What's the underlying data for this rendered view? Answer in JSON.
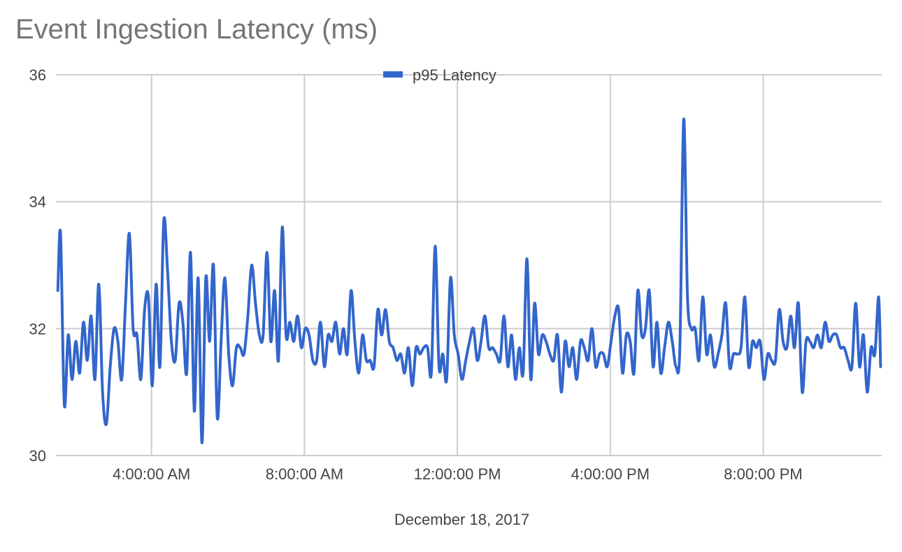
{
  "chart_data": {
    "type": "line",
    "title": "Event Ingestion Latency (ms)",
    "xlabel": "December 18, 2017",
    "ylabel": "",
    "ylim": [
      30,
      36
    ],
    "y_ticks": [
      30,
      32,
      34,
      36
    ],
    "x_range_hours": [
      1.5,
      23.1
    ],
    "x_ticks": [
      {
        "hour": 4,
        "label": "4:00:00 AM"
      },
      {
        "hour": 8,
        "label": "8:00:00 AM"
      },
      {
        "hour": 12,
        "label": "12:00:00 PM"
      },
      {
        "hour": 16,
        "label": "4:00:00 PM"
      },
      {
        "hour": 20,
        "label": "8:00:00 PM"
      }
    ],
    "grid": true,
    "legend_position": "top-center",
    "series": [
      {
        "name": "p95 Latency",
        "color": "#3366cc",
        "x_hours": [
          1.55,
          1.62,
          1.72,
          1.82,
          1.92,
          2.02,
          2.12,
          2.22,
          2.32,
          2.42,
          2.52,
          2.62,
          2.72,
          2.82,
          2.92,
          3.02,
          3.12,
          3.22,
          3.32,
          3.42,
          3.52,
          3.62,
          3.72,
          3.82,
          3.92,
          4.02,
          4.12,
          4.22,
          4.32,
          4.42,
          4.52,
          4.62,
          4.72,
          4.82,
          4.92,
          5.02,
          5.12,
          5.22,
          5.32,
          5.42,
          5.52,
          5.62,
          5.72,
          5.82,
          5.92,
          6.02,
          6.12,
          6.22,
          6.32,
          6.42,
          6.52,
          6.62,
          6.72,
          6.82,
          6.92,
          7.02,
          7.12,
          7.22,
          7.32,
          7.42,
          7.52,
          7.62,
          7.72,
          7.82,
          7.92,
          8.02,
          8.12,
          8.22,
          8.32,
          8.42,
          8.52,
          8.62,
          8.72,
          8.82,
          8.92,
          9.02,
          9.12,
          9.22,
          9.32,
          9.42,
          9.52,
          9.62,
          9.72,
          9.82,
          9.92,
          10.02,
          10.12,
          10.22,
          10.32,
          10.42,
          10.52,
          10.62,
          10.72,
          10.82,
          10.92,
          11.02,
          11.12,
          11.22,
          11.32,
          11.42,
          11.52,
          11.62,
          11.72,
          11.82,
          11.92,
          12.02,
          12.12,
          12.22,
          12.32,
          12.42,
          12.52,
          12.62,
          12.72,
          12.82,
          12.92,
          13.02,
          13.12,
          13.22,
          13.32,
          13.42,
          13.52,
          13.62,
          13.72,
          13.82,
          13.92,
          14.02,
          14.12,
          14.22,
          14.32,
          14.42,
          14.52,
          14.62,
          14.72,
          14.82,
          14.92,
          15.02,
          15.12,
          15.22,
          15.32,
          15.42,
          15.52,
          15.62,
          15.72,
          15.82,
          15.92,
          16.02,
          16.12,
          16.22,
          16.32,
          16.42,
          16.52,
          16.62,
          16.72,
          16.82,
          16.92,
          17.02,
          17.12,
          17.22,
          17.32,
          17.42,
          17.52,
          17.62,
          17.72,
          17.82,
          17.92,
          18.02,
          18.12,
          18.22,
          18.32,
          18.42,
          18.52,
          18.62,
          18.72,
          18.82,
          18.92,
          19.02,
          19.12,
          19.22,
          19.32,
          19.42,
          19.52,
          19.62,
          19.72,
          19.82,
          19.92,
          20.02,
          20.12,
          20.22,
          20.32,
          20.42,
          20.52,
          20.62,
          20.72,
          20.82,
          20.92,
          21.02,
          21.12,
          21.22,
          21.32,
          21.42,
          21.52,
          21.62,
          21.72,
          21.82,
          21.92,
          22.02,
          22.12,
          22.22,
          22.32,
          22.42,
          22.52,
          22.62,
          22.72,
          22.82,
          22.92,
          23.02,
          23.07
        ],
        "values": [
          32.6,
          33.5,
          30.8,
          31.9,
          31.2,
          31.8,
          31.3,
          32.1,
          31.5,
          32.2,
          31.2,
          32.7,
          31.0,
          30.5,
          31.4,
          32.0,
          31.8,
          31.2,
          32.4,
          33.5,
          32.0,
          31.9,
          31.2,
          32.3,
          32.5,
          31.1,
          32.7,
          31.4,
          33.7,
          32.9,
          31.8,
          31.5,
          32.4,
          32.1,
          31.3,
          33.2,
          30.7,
          32.8,
          30.2,
          32.8,
          31.8,
          33.0,
          30.6,
          31.8,
          32.8,
          31.6,
          31.1,
          31.7,
          31.7,
          31.6,
          32.2,
          33.0,
          32.4,
          31.9,
          31.9,
          33.2,
          31.8,
          32.6,
          31.5,
          33.6,
          31.9,
          32.1,
          31.8,
          32.2,
          31.7,
          32.0,
          31.9,
          31.5,
          31.5,
          32.1,
          31.4,
          31.9,
          31.8,
          32.1,
          31.6,
          32.0,
          31.6,
          32.6,
          31.8,
          31.3,
          31.9,
          31.5,
          31.5,
          31.4,
          32.3,
          31.9,
          32.3,
          31.8,
          31.7,
          31.5,
          31.6,
          31.3,
          31.7,
          31.1,
          31.7,
          31.6,
          31.7,
          31.7,
          31.3,
          33.3,
          31.4,
          31.6,
          31.2,
          32.8,
          31.9,
          31.6,
          31.2,
          31.5,
          31.8,
          32.0,
          31.5,
          31.8,
          32.2,
          31.7,
          31.7,
          31.6,
          31.5,
          32.2,
          31.4,
          31.9,
          31.2,
          31.7,
          31.3,
          33.1,
          31.2,
          32.4,
          31.6,
          31.9,
          31.8,
          31.6,
          31.5,
          31.9,
          31.0,
          31.8,
          31.4,
          31.7,
          31.2,
          31.8,
          31.7,
          31.5,
          32.0,
          31.4,
          31.6,
          31.6,
          31.4,
          31.8,
          32.2,
          32.3,
          31.3,
          31.9,
          31.8,
          31.3,
          32.6,
          31.9,
          32.0,
          32.6,
          31.4,
          32.1,
          31.3,
          31.7,
          32.1,
          31.8,
          31.4,
          31.7,
          35.3,
          32.5,
          32.0,
          32.0,
          31.5,
          32.5,
          31.6,
          31.9,
          31.4,
          31.6,
          31.9,
          32.4,
          31.4,
          31.6,
          31.6,
          31.7,
          32.5,
          31.4,
          31.8,
          31.7,
          31.8,
          31.2,
          31.6,
          31.5,
          31.5,
          32.3,
          31.8,
          31.7,
          32.2,
          31.7,
          32.4,
          31.0,
          31.8,
          31.8,
          31.7,
          31.9,
          31.7,
          32.1,
          31.8,
          31.9,
          31.9,
          31.7,
          31.7,
          31.5,
          31.4,
          32.4,
          31.4,
          31.9,
          31.0,
          31.7,
          31.6,
          32.5,
          31.4
        ]
      }
    ]
  }
}
